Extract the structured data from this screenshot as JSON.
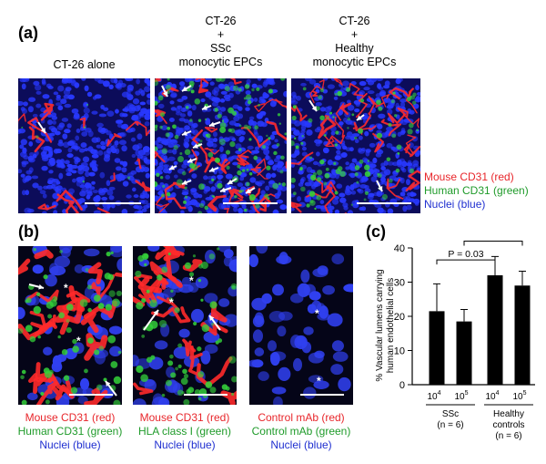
{
  "panel_a": {
    "label": "(a)",
    "columns": [
      {
        "lines": [
          "CT-26 alone"
        ]
      },
      {
        "lines": [
          "CT-26",
          "+",
          "SSc",
          "monocytic EPCs"
        ]
      },
      {
        "lines": [
          "CT-26",
          "+",
          "Healthy",
          "monocytic EPCs"
        ]
      }
    ],
    "legend": [
      "Mouse CD31 (red)",
      "Human CD31 (green)",
      "Nuclei (blue)"
    ]
  },
  "panel_b": {
    "label": "(b)",
    "captions": [
      [
        "Mouse CD31 (red)",
        "Human CD31 (green)",
        "Nuclei (blue)"
      ],
      [
        "Mouse CD31 (red)",
        "HLA class I (green)",
        "Nuclei (blue)"
      ],
      [
        "Control mAb (red)",
        "Control mAb (green)",
        "Nuclei (blue)"
      ]
    ],
    "asterisk": "*"
  },
  "panel_c": {
    "label": "(c)"
  },
  "colors": {
    "red": "#e8262b",
    "green": "#1f9b2a",
    "blue": "#1f2fd0",
    "tissue_background": "#0b0b4a"
  },
  "chart_data": {
    "type": "bar",
    "ylabel": [
      "% Vascular lumens carrying",
      "human endothelial cells"
    ],
    "ylim": [
      0,
      40
    ],
    "yticks": [
      "0",
      "10",
      "20",
      "30",
      "40"
    ],
    "categories": [
      "10^4",
      "10^5",
      "10^4",
      "10^5"
    ],
    "tick_base": "10",
    "tick_exponents": [
      "4",
      "5",
      "4",
      "5"
    ],
    "values": [
      21.5,
      18.5,
      32,
      29
    ],
    "errors": [
      8,
      3.5,
      5.5,
      4.2
    ],
    "groups": [
      {
        "name": "SSc",
        "n": "(n = 6)"
      },
      {
        "name": "Healthy",
        "name2": "controls",
        "n": "(n = 6)"
      }
    ],
    "comparisons": [
      {
        "label": "P = 0.03",
        "from": 0,
        "to": 2
      },
      {
        "label": "P = 0.03",
        "from": 1,
        "to": 3
      }
    ],
    "bar_color": "#000000"
  }
}
